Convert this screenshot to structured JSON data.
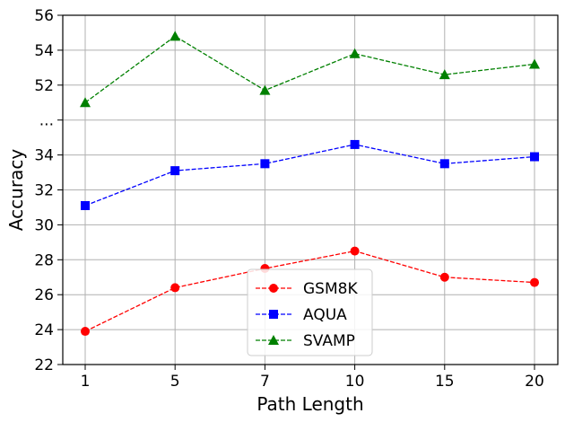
{
  "chart_data": {
    "type": "line",
    "xlabel": "Path Length",
    "ylabel": "Accuracy",
    "categories": [
      "1",
      "5",
      "7",
      "10",
      "15",
      "20"
    ],
    "y_tick_labels": [
      "22",
      "24",
      "26",
      "28",
      "30",
      "32",
      "34",
      "...",
      "52",
      "54",
      "56"
    ],
    "y_axis_break": {
      "lower_segment": [
        22,
        35
      ],
      "upper_segment": [
        51,
        56
      ],
      "break_label": "..."
    },
    "ylim": [
      22,
      56
    ],
    "grid": true,
    "legend_position": "bottom-center",
    "series": [
      {
        "name": "GSM8K",
        "color": "#ff0000",
        "marker": "circle",
        "line_style": "dashed",
        "values": [
          23.9,
          26.4,
          27.5,
          28.5,
          27.0,
          26.7
        ]
      },
      {
        "name": "AQUA",
        "color": "#0000ff",
        "marker": "square",
        "line_style": "dashed",
        "values": [
          31.1,
          33.1,
          33.5,
          34.6,
          33.5,
          33.9
        ]
      },
      {
        "name": "SVAMP",
        "color": "#008000",
        "marker": "triangle",
        "line_style": "dashed",
        "values": [
          51.0,
          54.8,
          51.7,
          53.8,
          52.6,
          53.2
        ]
      }
    ]
  }
}
